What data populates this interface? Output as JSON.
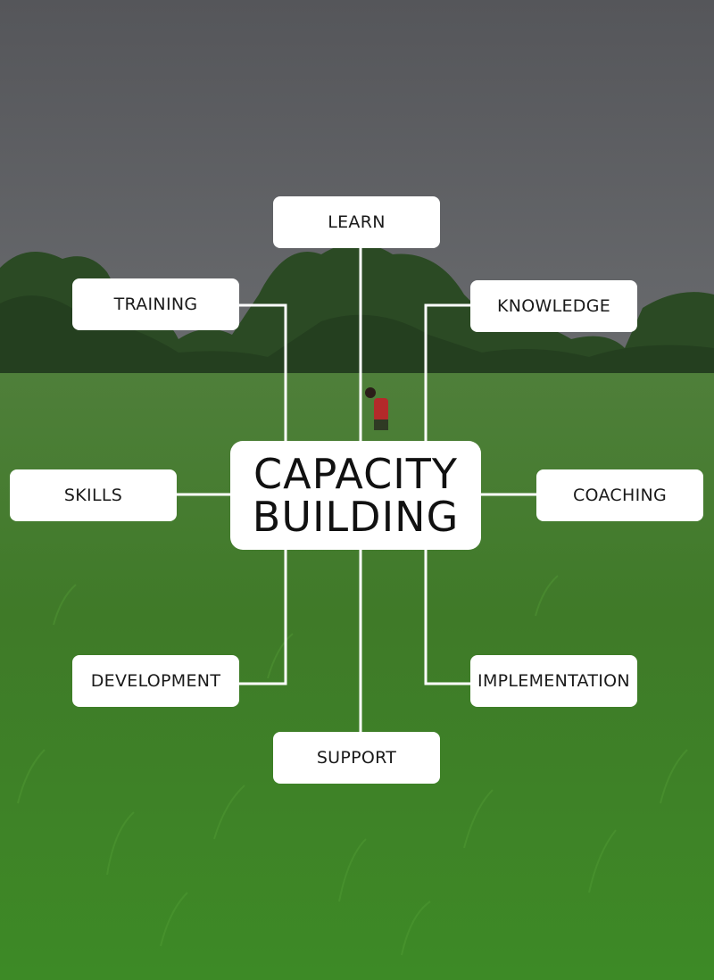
{
  "colors": {
    "sky": "#5c5d60",
    "field": "#3f7f2a",
    "connector": "#ffffff",
    "box": "#ffffff",
    "text": "#1a1a1a"
  },
  "center": {
    "line1": "CAPACITY",
    "line2": "BUILDING"
  },
  "nodes": {
    "learn": "LEARN",
    "training": "TRAINING",
    "knowledge": "KNOWLEDGE",
    "skills": "SKILLS",
    "coaching": "COACHING",
    "development": "DEVELOPMENT",
    "implementation": "IMPLEMENTATION",
    "support": "SUPPORT"
  }
}
